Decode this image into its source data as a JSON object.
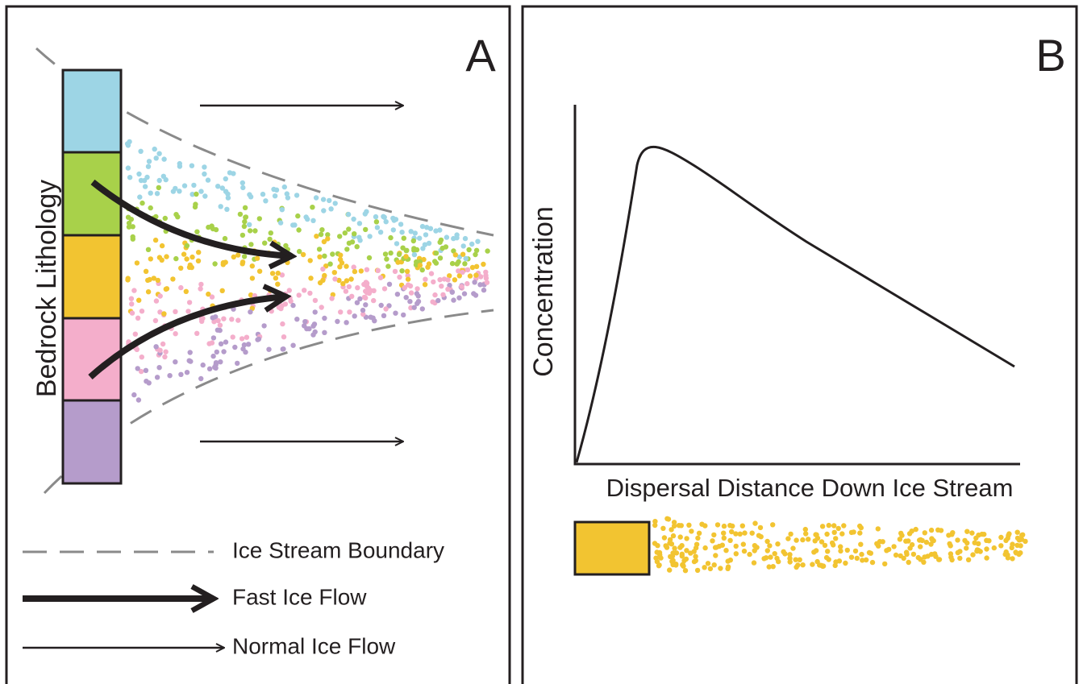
{
  "panels": {
    "a": {
      "label": "A",
      "axis_label": "Bedrock Lithology"
    },
    "b": {
      "label": "B",
      "y_axis_label": "Concentration",
      "x_axis_label": "Dispersal Distance Down Ice Stream"
    }
  },
  "legend": [
    {
      "label": "Ice Stream Boundary"
    },
    {
      "label": "Fast Ice Flow"
    },
    {
      "label": "Normal Ice Flow"
    }
  ]
}
